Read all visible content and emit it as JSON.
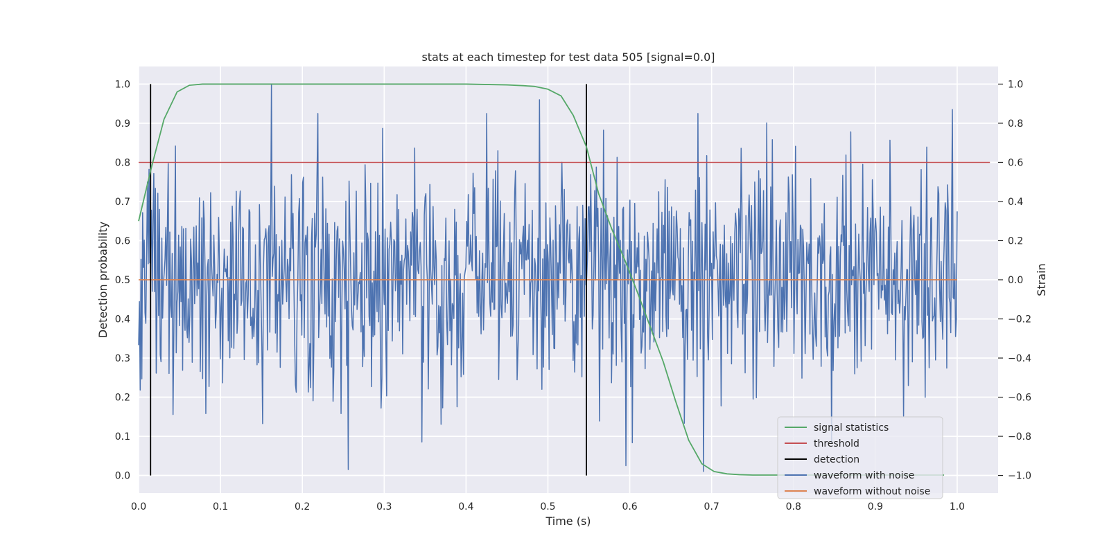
{
  "chart_data": {
    "type": "line",
    "title": "stats at each timestep for test data 505 [signal=0.0]",
    "xlabel": "Time (s)",
    "ylabel": "Detection probability",
    "ylabel_right": "Strain",
    "xlim": [
      0.0,
      1.05
    ],
    "ylim": [
      -0.045,
      1.045
    ],
    "ylim_right": [
      -1.09,
      1.09
    ],
    "x_ticks": [
      0.0,
      0.1,
      0.2,
      0.3,
      0.4,
      0.5,
      0.6,
      0.7,
      0.8,
      0.9,
      1.0
    ],
    "x_tick_labels": [
      "0.0",
      "0.1",
      "0.2",
      "0.3",
      "0.4",
      "0.5",
      "0.6",
      "0.7",
      "0.8",
      "0.9",
      "1.0"
    ],
    "y_ticks": [
      0.0,
      0.1,
      0.2,
      0.3,
      0.4,
      0.5,
      0.6,
      0.7,
      0.8,
      0.9,
      1.0
    ],
    "y_tick_labels": [
      "0.0",
      "0.1",
      "0.2",
      "0.3",
      "0.4",
      "0.5",
      "0.6",
      "0.7",
      "0.8",
      "0.9",
      "1.0"
    ],
    "y_right_ticks": [
      -1.0,
      -0.8,
      -0.6,
      -0.4,
      -0.2,
      0.0,
      0.2,
      0.4,
      0.6,
      0.8,
      1.0
    ],
    "y_right_tick_labels": [
      "−1.0",
      "−0.8",
      "−0.6",
      "−0.4",
      "−0.2",
      "0.0",
      "0.2",
      "0.4",
      "0.6",
      "0.8",
      "1.0"
    ],
    "grid": true,
    "legend_position": "bottom-right",
    "colors": {
      "signal_statistics": "#55a868",
      "threshold": "#c44e52",
      "detection": "#000000",
      "waveform_with_noise": "#4c72b0",
      "waveform_without_noise": "#dd8452",
      "plot_background": "#eaeaf2",
      "grid": "#ffffff"
    },
    "series": [
      {
        "name": "signal statistics",
        "axis": "left",
        "x": [
          0.0,
          0.016,
          0.031,
          0.047,
          0.062,
          0.078,
          0.1,
          0.2,
          0.3,
          0.4,
          0.45,
          0.47,
          0.484,
          0.5,
          0.516,
          0.531,
          0.547,
          0.562,
          0.578,
          0.594,
          0.609,
          0.625,
          0.641,
          0.656,
          0.672,
          0.688,
          0.703,
          0.719,
          0.734,
          0.75,
          0.8,
          0.9,
          0.984
        ],
        "y": [
          0.65,
          0.79,
          0.91,
          0.98,
          0.997,
          1.0,
          1.0,
          1.0,
          1.0,
          1.0,
          0.998,
          0.996,
          0.994,
          0.987,
          0.97,
          0.92,
          0.84,
          0.72,
          0.63,
          0.55,
          0.47,
          0.38,
          0.29,
          0.19,
          0.09,
          0.03,
          0.01,
          0.004,
          0.002,
          0.001,
          0.001,
          0.001,
          0.001
        ]
      },
      {
        "name": "threshold",
        "axis": "left",
        "x": [
          0.0,
          1.04
        ],
        "y": [
          0.8,
          0.8
        ]
      },
      {
        "name": "detection",
        "axis": "left",
        "x": [
          0.0146,
          0.547
        ],
        "y_range": [
          0.0,
          1.0
        ]
      },
      {
        "name": "waveform with noise",
        "axis": "right",
        "x_range": [
          0.0,
          1.0
        ],
        "num_samples": 1024,
        "amplitude_std": 0.3,
        "y_extent": [
          -0.98,
          1.0
        ],
        "notable_peaks": [
          {
            "x": 0.162,
            "y": 1.0
          },
          {
            "x": 0.49,
            "y": 0.92
          },
          {
            "x": 0.994,
            "y": 0.87
          },
          {
            "x": 0.256,
            "y": -0.97
          },
          {
            "x": 0.595,
            "y": -0.95
          },
          {
            "x": 0.69,
            "y": -0.98
          }
        ]
      },
      {
        "name": "waveform without noise",
        "axis": "right",
        "x": [
          0.0,
          1.0
        ],
        "y": [
          0.0,
          0.0
        ]
      }
    ]
  }
}
